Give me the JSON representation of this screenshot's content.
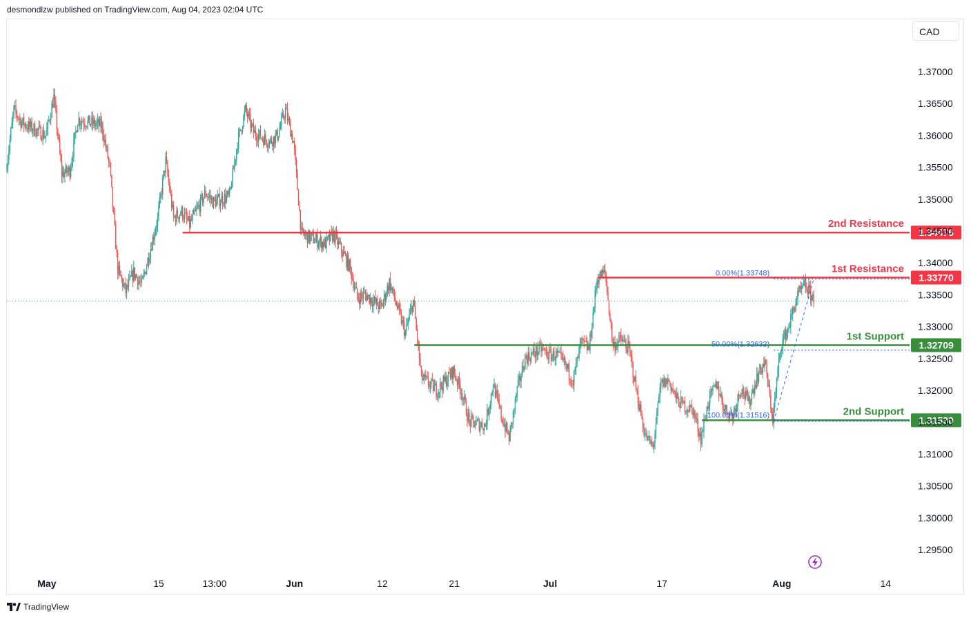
{
  "header": {
    "published": "desmondlzw published on TradingView.com, Aug 04, 2023 02:04 UTC"
  },
  "currency_button": {
    "label": "CAD"
  },
  "footer": {
    "brand": "TradingView"
  },
  "colors": {
    "up": "#26a69a",
    "down": "#ef5350",
    "resistance": "#f23645",
    "support": "#388e3c",
    "fib": "#2962ff"
  },
  "icons": {
    "lightning": "lightning-icon",
    "logo": "tradingview-logo-icon"
  },
  "chart_data": {
    "type": "candlestick",
    "symbol_currency": "CAD",
    "ylim": [
      1.2925,
      1.3775
    ],
    "y_ticks": [
      "1.29500",
      "1.30000",
      "1.30500",
      "1.31000",
      "1.31500",
      "1.32000",
      "1.32500",
      "1.33000",
      "1.33500",
      "1.34000",
      "1.34500",
      "1.35000",
      "1.35500",
      "1.36000",
      "1.36500",
      "1.37000"
    ],
    "x_ticks": [
      {
        "label": "May",
        "date": "2023-05-01",
        "bold": true
      },
      {
        "label": "15",
        "date": "2023-05-15",
        "bold": false
      },
      {
        "label": "13:00",
        "date": "2023-05-22",
        "bold": false
      },
      {
        "label": "Jun",
        "date": "2023-06-01",
        "bold": true
      },
      {
        "label": "12",
        "date": "2023-06-12",
        "bold": false
      },
      {
        "label": "21",
        "date": "2023-06-21",
        "bold": false
      },
      {
        "label": "Jul",
        "date": "2023-07-03",
        "bold": true
      },
      {
        "label": "17",
        "date": "2023-07-17",
        "bold": false
      },
      {
        "label": "Aug",
        "date": "2023-08-01",
        "bold": true
      },
      {
        "label": "14",
        "date": "2023-08-14",
        "bold": false
      }
    ],
    "x_range": [
      "2023-04-26",
      "2023-08-17"
    ],
    "price_path": [
      [
        "2023-04-26",
        1.3545
      ],
      [
        "2023-04-27",
        1.364
      ],
      [
        "2023-04-28",
        1.362
      ],
      [
        "2023-05-01",
        1.36
      ],
      [
        "2023-05-02",
        1.366
      ],
      [
        "2023-05-03",
        1.354
      ],
      [
        "2023-05-04",
        1.3545
      ],
      [
        "2023-05-05",
        1.3625
      ],
      [
        "2023-05-08",
        1.3615
      ],
      [
        "2023-05-09",
        1.355
      ],
      [
        "2023-05-10",
        1.339
      ],
      [
        "2023-05-11",
        1.3355
      ],
      [
        "2023-05-12",
        1.3385
      ],
      [
        "2023-05-13",
        1.3365
      ],
      [
        "2023-05-15",
        1.347
      ],
      [
        "2023-05-16",
        1.356
      ],
      [
        "2023-05-17",
        1.347
      ],
      [
        "2023-05-18",
        1.348
      ],
      [
        "2023-05-19",
        1.346
      ],
      [
        "2023-05-21",
        1.351
      ],
      [
        "2023-05-22",
        1.3495
      ],
      [
        "2023-05-24",
        1.3505
      ],
      [
        "2023-05-25",
        1.359
      ],
      [
        "2023-05-26",
        1.364
      ],
      [
        "2023-05-27",
        1.3605
      ],
      [
        "2023-05-29",
        1.359
      ],
      [
        "2023-05-30",
        1.36
      ],
      [
        "2023-05-31",
        1.364
      ],
      [
        "2023-06-01",
        1.359
      ],
      [
        "2023-06-02",
        1.3445
      ],
      [
        "2023-06-05",
        1.343
      ],
      [
        "2023-06-06",
        1.3445
      ],
      [
        "2023-06-07",
        1.342
      ],
      [
        "2023-06-08",
        1.3395
      ],
      [
        "2023-06-09",
        1.3345
      ],
      [
        "2023-06-10",
        1.335
      ],
      [
        "2023-06-12",
        1.333
      ],
      [
        "2023-06-13",
        1.337
      ],
      [
        "2023-06-14",
        1.333
      ],
      [
        "2023-06-15",
        1.329
      ],
      [
        "2023-06-16",
        1.334
      ],
      [
        "2023-06-17",
        1.322
      ],
      [
        "2023-06-19",
        1.32
      ],
      [
        "2023-06-20",
        1.3215
      ],
      [
        "2023-06-21",
        1.323
      ],
      [
        "2023-06-22",
        1.32
      ],
      [
        "2023-06-23",
        1.315
      ],
      [
        "2023-06-25",
        1.3145
      ],
      [
        "2023-06-26",
        1.321
      ],
      [
        "2023-06-27",
        1.316
      ],
      [
        "2023-06-28",
        1.3125
      ],
      [
        "2023-06-29",
        1.32
      ],
      [
        "2023-06-30",
        1.325
      ],
      [
        "2023-07-02",
        1.3265
      ],
      [
        "2023-07-03",
        1.3255
      ],
      [
        "2023-07-04",
        1.3255
      ],
      [
        "2023-07-05",
        1.324
      ],
      [
        "2023-07-06",
        1.3215
      ],
      [
        "2023-07-07",
        1.3275
      ],
      [
        "2023-07-08",
        1.3265
      ],
      [
        "2023-07-09",
        1.3375
      ],
      [
        "2023-07-10",
        1.3385
      ],
      [
        "2023-07-11",
        1.327
      ],
      [
        "2023-07-12",
        1.328
      ],
      [
        "2023-07-13",
        1.3265
      ],
      [
        "2023-07-14",
        1.3195
      ],
      [
        "2023-07-15",
        1.313
      ],
      [
        "2023-07-16",
        1.311
      ],
      [
        "2023-07-17",
        1.321
      ],
      [
        "2023-07-18",
        1.3215
      ],
      [
        "2023-07-19",
        1.3185
      ],
      [
        "2023-07-20",
        1.3175
      ],
      [
        "2023-07-21",
        1.317
      ],
      [
        "2023-07-22",
        1.3125
      ],
      [
        "2023-07-23",
        1.3185
      ],
      [
        "2023-07-24",
        1.321
      ],
      [
        "2023-07-25",
        1.317
      ],
      [
        "2023-07-26",
        1.316
      ],
      [
        "2023-07-27",
        1.3205
      ],
      [
        "2023-07-28",
        1.318
      ],
      [
        "2023-07-29",
        1.322
      ],
      [
        "2023-07-30",
        1.3245
      ],
      [
        "2023-07-31",
        1.3155
      ],
      [
        "2023-08-01",
        1.327
      ],
      [
        "2023-08-02",
        1.33
      ],
      [
        "2023-08-03",
        1.3345
      ],
      [
        "2023-08-04",
        1.3365
      ],
      [
        "2023-08-05",
        1.3345
      ]
    ],
    "last_price": 1.334,
    "levels": [
      {
        "name": "2nd Resistance",
        "value": 1.34476,
        "label": "1.34476",
        "color": "#f23645",
        "start": "2023-05-18"
      },
      {
        "name": "1st Resistance",
        "value": 1.3377,
        "label": "1.33770",
        "color": "#f23645",
        "start": "2023-07-09"
      },
      {
        "name": "1st Support",
        "value": 1.32709,
        "label": "1.32709",
        "color": "#388e3c",
        "start": "2023-06-16"
      },
      {
        "name": "2nd Support",
        "value": 1.3153,
        "label": "1.31530",
        "color": "#388e3c",
        "start": "2023-07-22"
      }
    ],
    "fibonacci": [
      {
        "text": "0.00%(1.33748)",
        "value": 1.33748
      },
      {
        "text": "50.00%(1.32632)",
        "value": 1.32632
      },
      {
        "text": "100.00%(1.31516)",
        "value": 1.31516
      }
    ],
    "fib_start": "2023-07-31",
    "fib_end": "2023-08-17"
  }
}
